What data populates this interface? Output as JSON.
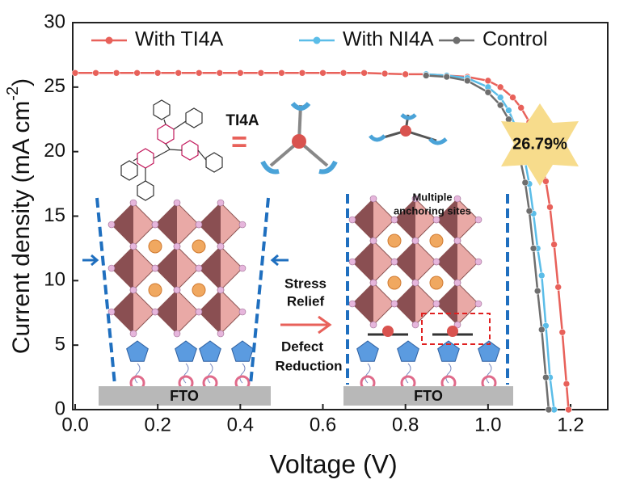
{
  "chart_data": {
    "type": "line",
    "xlabel": "Voltage (V)",
    "ylabel": {
      "text": "Current  density (mA cm",
      "sup": "-2",
      "end": ")"
    },
    "xlim": [
      0,
      1.29
    ],
    "ylim": [
      0,
      30
    ],
    "xticks": [
      {
        "value": 0,
        "label": "0.0"
      },
      0.2,
      0.4,
      0.6,
      0.8,
      {
        "value": 1,
        "label": "1.0"
      },
      1.2
    ],
    "yticks": [
      0,
      5,
      10,
      15,
      20,
      25,
      30
    ],
    "legend": "top",
    "series": [
      {
        "name": "With TI4A",
        "color": "#e8615a",
        "x": [
          0,
          0.05,
          0.1,
          0.15,
          0.2,
          0.25,
          0.3,
          0.35,
          0.4,
          0.45,
          0.5,
          0.55,
          0.6,
          0.65,
          0.7,
          0.75,
          0.8,
          0.85,
          0.9,
          0.95,
          1.0,
          1.03,
          1.06,
          1.08,
          1.1,
          1.12,
          1.14,
          1.15,
          1.16,
          1.17,
          1.18,
          1.19,
          1.195
        ],
        "values": [
          26.1,
          26.1,
          26.1,
          26.1,
          26.1,
          26.1,
          26.1,
          26.1,
          26.1,
          26.1,
          26.1,
          26.1,
          26.1,
          26.1,
          26.1,
          26.05,
          26.0,
          26.0,
          25.9,
          25.8,
          25.5,
          25.0,
          24.2,
          23.4,
          22.3,
          20.5,
          17.7,
          15.7,
          12.8,
          9.5,
          6.0,
          2.0,
          0
        ]
      },
      {
        "name": "With NI4A",
        "color": "#5bbde8",
        "x": [
          0.85,
          0.9,
          0.95,
          1.0,
          1.03,
          1.05,
          1.07,
          1.09,
          1.1,
          1.11,
          1.12,
          1.13,
          1.14,
          1.15,
          1.16
        ],
        "values": [
          26.0,
          25.9,
          25.7,
          25.0,
          24.2,
          23.2,
          21.7,
          19.2,
          17.5,
          15.2,
          12.5,
          10.4,
          6.5,
          2.5,
          0
        ]
      },
      {
        "name": "Control",
        "color": "#6e6e6e",
        "x": [
          0.85,
          0.9,
          0.95,
          1.0,
          1.03,
          1.05,
          1.07,
          1.09,
          1.1,
          1.11,
          1.12,
          1.13,
          1.14,
          1.147
        ],
        "values": [
          25.9,
          25.8,
          25.5,
          24.6,
          23.6,
          22.5,
          20.6,
          17.6,
          15.4,
          12.5,
          9.2,
          6.2,
          2.5,
          0
        ]
      }
    ],
    "annotations": {
      "molecule": "TI4A",
      "equals": "=",
      "efficiency": "26.79%",
      "sites_1": "Multiple",
      "sites_2": "anchoring sites",
      "stress_1": "Stress",
      "stress_2": "Relief",
      "defect_1": "Defect",
      "defect_2": "Reduction",
      "substrate_left": "FTO",
      "substrate_right": "FTO"
    }
  }
}
